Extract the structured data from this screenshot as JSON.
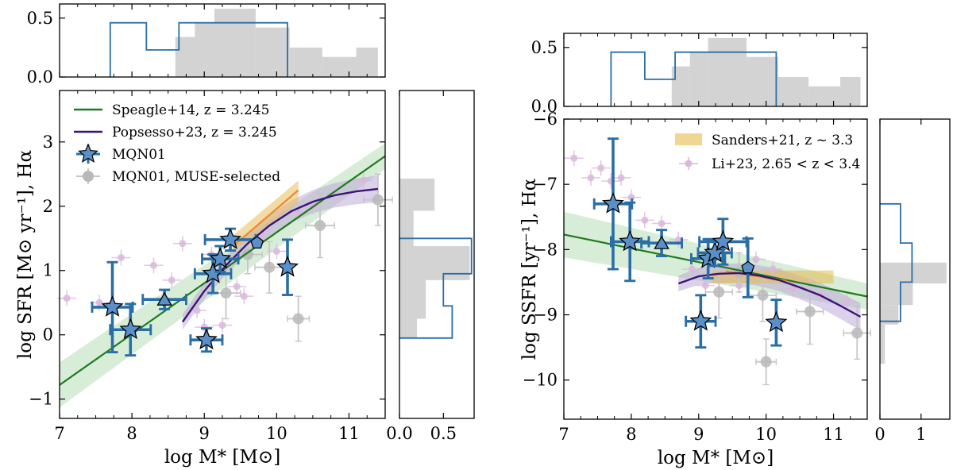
{
  "colors": {
    "speagle": "#1f7a1f",
    "popsesso": "#3b1477",
    "mqn": "#5b8fc8",
    "mqn_err": "#2a6ea6",
    "muse": "#b8b8b8",
    "li23": "#d9b8dc",
    "sanders": "#e8b94a",
    "hist_gray": "#d3d3d3",
    "hist_blue": "#2a6ea6",
    "green_band": "#a8d8a8",
    "purple_band": "#b9a3d6",
    "orange_line": "#f08a3c"
  },
  "chart_data": [
    {
      "type": "scatter",
      "panel": "left-main",
      "xlabel": "log M* [M⊙]",
      "ylabel": "log SFR [M⊙ yr⁻¹], Hα",
      "xlim": [
        7,
        11.5
      ],
      "ylim": [
        -1.3,
        3.8
      ],
      "xticks": [
        "7",
        "8",
        "9",
        "10",
        "11"
      ],
      "yticks": [
        "−1",
        "0",
        "1",
        "2",
        "3"
      ],
      "legend_position": "top-left",
      "legend": [
        {
          "label": "Speagle+14, z = 3.245",
          "kind": "line",
          "color_key": "speagle"
        },
        {
          "label": "Popsesso+23, z = 3.245",
          "kind": "line",
          "color_key": "popsesso"
        },
        {
          "label": "MQN01",
          "kind": "star",
          "color_key": "mqn"
        },
        {
          "label": "MQN01, MUSE-selected",
          "kind": "circle",
          "color_key": "muse"
        }
      ],
      "speagle_line": {
        "x": [
          7.0,
          11.5
        ],
        "y": [
          -0.78,
          2.78
        ]
      },
      "popsesso_curve": {
        "x": [
          8.7,
          9.0,
          9.3,
          9.6,
          9.9,
          10.2,
          10.5,
          10.8,
          11.1,
          11.4
        ],
        "y": [
          0.2,
          0.68,
          1.08,
          1.42,
          1.7,
          1.92,
          2.07,
          2.17,
          2.23,
          2.27
        ]
      },
      "mqn01": [
        {
          "marker": "star",
          "x": 7.73,
          "y": 0.43,
          "xerr": 0.28,
          "yerr": 0.7
        },
        {
          "marker": "star",
          "x": 7.98,
          "y": 0.08,
          "xerr": 0.28,
          "yerr": 0.4
        },
        {
          "marker": "star",
          "x": 9.03,
          "y": -0.08,
          "xerr": 0.22,
          "yerr": 0.18
        },
        {
          "marker": "star",
          "x": 9.12,
          "y": 0.95,
          "xerr": 0.25,
          "yerr": 0.3
        },
        {
          "marker": "star",
          "x": 9.22,
          "y": 1.18,
          "xerr": 0.25,
          "yerr": 0.2
        },
        {
          "marker": "star",
          "x": 9.36,
          "y": 1.48,
          "xerr": 0.35,
          "yerr": 0.17
        },
        {
          "marker": "star",
          "x": 10.15,
          "y": 1.05,
          "xerr": 0.0,
          "yerr": 0.43
        },
        {
          "marker": "triangle",
          "x": 8.45,
          "y": 0.55,
          "xerr": 0.3,
          "yerr": 0.15
        },
        {
          "marker": "pentagon",
          "x": 9.73,
          "y": 1.43,
          "xerr": 0.0,
          "yerr": 0.0
        }
      ],
      "muse_selected": [
        {
          "x": 9.3,
          "y": 0.65,
          "xerr": 0.2,
          "yerr": 0.4
        },
        {
          "x": 9.9,
          "y": 1.05,
          "xerr": 0.2,
          "yerr": 0.4
        },
        {
          "x": 10.3,
          "y": 0.25,
          "xerr": 0.15,
          "yerr": 0.35
        },
        {
          "x": 10.6,
          "y": 1.7,
          "xerr": 0.2,
          "yerr": 0.5
        },
        {
          "x": 11.4,
          "y": 2.1,
          "xerr": 0.2,
          "yerr": 0.4
        },
        {
          "x": 9.6,
          "y": 1.25,
          "xerr": 0.2,
          "yerr": 0.3
        }
      ],
      "li23": [
        {
          "x": 7.1,
          "y": 0.57
        },
        {
          "x": 7.55,
          "y": 0.5
        },
        {
          "x": 7.85,
          "y": 1.2
        },
        {
          "x": 8.3,
          "y": 1.08
        },
        {
          "x": 8.55,
          "y": 0.85
        },
        {
          "x": 8.7,
          "y": 1.42
        },
        {
          "x": 8.9,
          "y": 0.38
        },
        {
          "x": 9.0,
          "y": 0.12
        },
        {
          "x": 9.1,
          "y": 1.25
        },
        {
          "x": 9.45,
          "y": 0.75
        },
        {
          "x": 9.55,
          "y": 0.6
        },
        {
          "x": 9.8,
          "y": 1.55
        },
        {
          "x": 10.0,
          "y": 1.3
        },
        {
          "x": 10.3,
          "y": 1.9
        },
        {
          "x": 10.5,
          "y": 2.0
        },
        {
          "x": 10.8,
          "y": 2.2
        },
        {
          "x": 11.2,
          "y": 2.4
        },
        {
          "x": 9.25,
          "y": 0.15
        }
      ]
    },
    {
      "type": "bar",
      "panel": "left-top-histogram",
      "xlim": [
        7,
        11.5
      ],
      "ylim": [
        0,
        0.62
      ],
      "yticks": [
        "0.0",
        "0.5"
      ],
      "gray_bins": {
        "edges": [
          8.6,
          8.87,
          9.14,
          9.71,
          10.18,
          10.63,
          11.1,
          11.4
        ],
        "values": [
          0.34,
          0.46,
          0.58,
          0.42,
          0.25,
          0.17,
          0.25
        ]
      },
      "blue_steps": {
        "edges": [
          7.7,
          8.2,
          8.65,
          10.15
        ],
        "values": [
          0.46,
          0.23,
          0.46
        ]
      }
    },
    {
      "type": "bar",
      "panel": "left-right-histogram",
      "orientation": "horizontal",
      "xlim": [
        0,
        0.85
      ],
      "ylim": [
        -1.3,
        3.8
      ],
      "xticks": [
        "0.0",
        "0.5"
      ],
      "gray_bins": {
        "edges": [
          -0.05,
          0.25,
          0.85,
          1.38,
          1.93,
          2.43
        ],
        "values": [
          0.2,
          0.3,
          0.8,
          0.16,
          0.4
        ]
      },
      "blue_steps": {
        "edges": [
          -0.05,
          0.45,
          0.95,
          1.5
        ],
        "values": [
          0.6,
          0.5,
          0.82
        ]
      }
    },
    {
      "type": "scatter",
      "panel": "right-main",
      "xlabel": "log M* [M⊙]",
      "ylabel": "log SSFR [yr⁻¹], Hα",
      "xlim": [
        7,
        11.5
      ],
      "ylim": [
        -10.6,
        -6.0
      ],
      "xticks": [
        "7",
        "8",
        "9",
        "10",
        "11"
      ],
      "yticks": [
        "−10",
        "−9",
        "−8",
        "−7",
        "−6"
      ],
      "legend_position": "top-right",
      "legend": [
        {
          "label": "Sanders+21, z ~ 3.3",
          "kind": "patch",
          "color_key": "sanders"
        },
        {
          "label": "Li+23, 2.65 < z < 3.4",
          "kind": "circle",
          "color_key": "li23"
        }
      ],
      "speagle_line": {
        "x": [
          7.0,
          11.5
        ],
        "y": [
          -7.77,
          -8.72
        ]
      },
      "popsesso_curve": {
        "x": [
          8.7,
          9.0,
          9.3,
          9.6,
          9.9,
          10.2,
          10.5,
          10.8,
          11.1,
          11.4
        ],
        "y": [
          -8.52,
          -8.41,
          -8.37,
          -8.36,
          -8.4,
          -8.47,
          -8.58,
          -8.7,
          -8.86,
          -9.03
        ]
      },
      "sanders_band": {
        "x": [
          9.2,
          11.0
        ],
        "y": [
          -8.52,
          -8.32
        ]
      },
      "mqn01": [
        {
          "marker": "star",
          "x": 7.73,
          "y": -7.3,
          "xerr": 0.28,
          "yerr": 1.0
        },
        {
          "marker": "star",
          "x": 7.98,
          "y": -7.88,
          "xerr": 0.28,
          "yerr": 0.6
        },
        {
          "marker": "star",
          "x": 9.03,
          "y": -9.1,
          "xerr": 0.22,
          "yerr": 0.4
        },
        {
          "marker": "star",
          "x": 9.14,
          "y": -8.14,
          "xerr": 0.25,
          "yerr": 0.3
        },
        {
          "marker": "star",
          "x": 9.24,
          "y": -8.05,
          "xerr": 0.25,
          "yerr": 0.2
        },
        {
          "marker": "star",
          "x": 9.36,
          "y": -7.88,
          "xerr": 0.35,
          "yerr": 0.35
        },
        {
          "marker": "star",
          "x": 10.15,
          "y": -9.12,
          "xerr": 0.0,
          "yerr": 0.35
        },
        {
          "marker": "triangle",
          "x": 8.45,
          "y": -7.9,
          "xerr": 0.3,
          "yerr": 0.2
        },
        {
          "marker": "pentagon",
          "x": 9.73,
          "y": -8.28,
          "xerr": 0.0,
          "yerr": 0.45
        }
      ],
      "muse_selected": [
        {
          "x": 9.3,
          "y": -8.65,
          "xerr": 0.2,
          "yerr": 0.4
        },
        {
          "x": 9.95,
          "y": -8.7,
          "xerr": 0.2,
          "yerr": 0.4
        },
        {
          "x": 10.0,
          "y": -9.72,
          "xerr": 0.15,
          "yerr": 0.35
        },
        {
          "x": 10.65,
          "y": -8.95,
          "xerr": 0.2,
          "yerr": 0.5
        },
        {
          "x": 11.35,
          "y": -9.28,
          "xerr": 0.2,
          "yerr": 0.4
        },
        {
          "x": 9.6,
          "y": -8.35,
          "xerr": 0.2,
          "yerr": 0.3
        }
      ],
      "li23": [
        {
          "x": 7.15,
          "y": -6.6
        },
        {
          "x": 7.4,
          "y": -6.9
        },
        {
          "x": 7.55,
          "y": -6.75
        },
        {
          "x": 7.7,
          "y": -6.95
        },
        {
          "x": 7.85,
          "y": -6.9
        },
        {
          "x": 8.0,
          "y": -7.2
        },
        {
          "x": 8.2,
          "y": -7.55
        },
        {
          "x": 8.45,
          "y": -7.6
        },
        {
          "x": 8.7,
          "y": -7.85
        },
        {
          "x": 8.9,
          "y": -8.3
        },
        {
          "x": 9.1,
          "y": -8.55
        },
        {
          "x": 9.35,
          "y": -8.25
        },
        {
          "x": 9.6,
          "y": -8.55
        },
        {
          "x": 9.85,
          "y": -8.15
        },
        {
          "x": 10.1,
          "y": -8.3
        },
        {
          "x": 10.4,
          "y": -8.6
        },
        {
          "x": 10.8,
          "y": -8.7
        },
        {
          "x": 11.2,
          "y": -8.8
        }
      ]
    },
    {
      "type": "bar",
      "panel": "right-top-histogram",
      "xlim": [
        7,
        11.5
      ],
      "ylim": [
        0,
        0.62
      ],
      "yticks": [
        "0.0",
        "0.5"
      ],
      "gray_bins": {
        "edges": [
          8.6,
          8.87,
          9.14,
          9.71,
          10.18,
          10.63,
          11.1,
          11.4
        ],
        "values": [
          0.34,
          0.46,
          0.58,
          0.42,
          0.25,
          0.17,
          0.25
        ]
      },
      "blue_steps": {
        "edges": [
          7.7,
          8.2,
          8.65,
          10.15
        ],
        "values": [
          0.46,
          0.23,
          0.46
        ]
      }
    },
    {
      "type": "bar",
      "panel": "right-right-histogram",
      "orientation": "horizontal",
      "xlim": [
        0,
        1.7
      ],
      "ylim": [
        -10.6,
        -6.0
      ],
      "xticks": [
        "0",
        "1"
      ],
      "gray_bins": {
        "edges": [
          -9.75,
          -9.15,
          -8.85,
          -8.52,
          -8.2
        ],
        "values": [
          0.12,
          0.45,
          0.8,
          1.62
        ]
      },
      "blue_steps": {
        "edges": [
          -9.1,
          -8.5,
          -7.9,
          -7.3
        ],
        "values": [
          0.5,
          0.78,
          0.5
        ]
      }
    }
  ]
}
